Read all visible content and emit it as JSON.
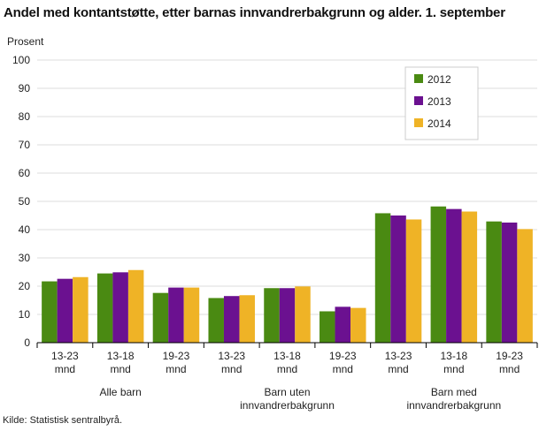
{
  "chart_data": {
    "type": "bar",
    "title": "Andel med kontantstøtte, etter barnas innvandrerbakgrunn og alder. 1. september",
    "y_label": "Prosent",
    "source": "Kilde: Statistisk sentralbyrå.",
    "categories": [
      "13-23 mnd",
      "13-18 mnd",
      "19-23 mnd",
      "13-23 mnd",
      "13-18 mnd",
      "19-23 mnd",
      "13-23 mnd",
      "13-18 mnd",
      "19-23 mnd"
    ],
    "category_groups": [
      "Alle barn",
      "Barn uten innvandrerbakgrunn",
      "Barn med innvandrerbakgrunn"
    ],
    "series": [
      {
        "name": "2012",
        "color": "#4a8a12",
        "values": [
          21.7,
          24.5,
          17.6,
          15.8,
          19.3,
          11.1,
          45.8,
          48.2,
          42.9
        ]
      },
      {
        "name": "2013",
        "color": "#6b1190",
        "values": [
          22.6,
          24.9,
          19.5,
          16.5,
          19.3,
          12.7,
          45.0,
          47.3,
          42.5
        ]
      },
      {
        "name": "2014",
        "color": "#efb326",
        "values": [
          23.2,
          25.7,
          19.5,
          16.8,
          19.9,
          12.3,
          43.6,
          46.4,
          40.2
        ]
      }
    ],
    "ylim": [
      0,
      100
    ],
    "yticks": [
      0,
      10,
      20,
      30,
      40,
      50,
      60,
      70,
      80,
      90,
      100
    ],
    "grid": true,
    "legend": "upper right"
  }
}
